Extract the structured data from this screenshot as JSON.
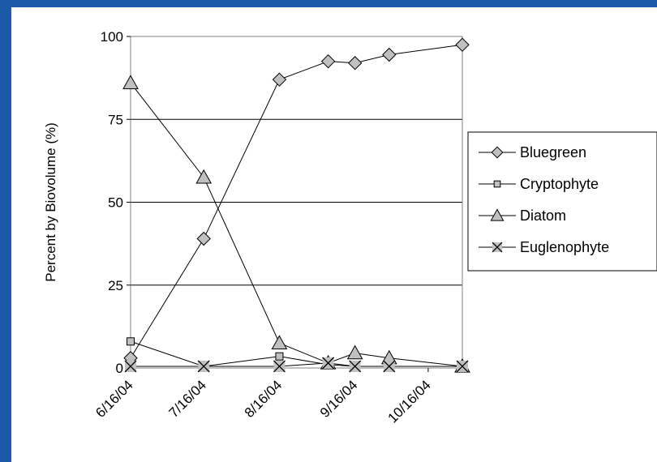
{
  "colors": {
    "background": "#1a5aa8",
    "plot_background": "#ffffff",
    "gridline": "#000000",
    "marker_fill": "#c0c0c0",
    "marker_stroke": "#000000"
  },
  "chart_data": {
    "type": "line",
    "title": "",
    "xlabel": "",
    "ylabel": "Percent by Biovolume (%)",
    "x_ticks": [
      "6/16/04",
      "7/16/04",
      "8/16/04",
      "9/16/04",
      "10/16/04"
    ],
    "y_ticks": [
      "0",
      "25",
      "50",
      "75",
      "100"
    ],
    "xlim": [
      "6/16/04",
      "10/30/04"
    ],
    "ylim": [
      0,
      100
    ],
    "grid": "horizontal",
    "legend_position": "right",
    "x": [
      "6/16/04",
      "7/16/04",
      "8/16/04",
      "9/5/04",
      "9/16/04",
      "9/30/04",
      "10/30/04"
    ],
    "series": [
      {
        "name": "Bluegreen",
        "marker": "diamond",
        "values": [
          3,
          39,
          87,
          92.5,
          92,
          94.5,
          97.5
        ]
      },
      {
        "name": "Cryptophyte",
        "marker": "square",
        "values": [
          8,
          0.5,
          3.5,
          1,
          0.5,
          0.5,
          0.5
        ]
      },
      {
        "name": "Diatom",
        "marker": "triangle",
        "values": [
          86,
          57.5,
          7.5,
          1.5,
          4.5,
          3,
          0.5
        ]
      },
      {
        "name": "Euglenophyte",
        "marker": "x",
        "values": [
          0.5,
          0.5,
          0.5,
          1.5,
          0.5,
          0.5,
          0.5
        ]
      }
    ]
  }
}
